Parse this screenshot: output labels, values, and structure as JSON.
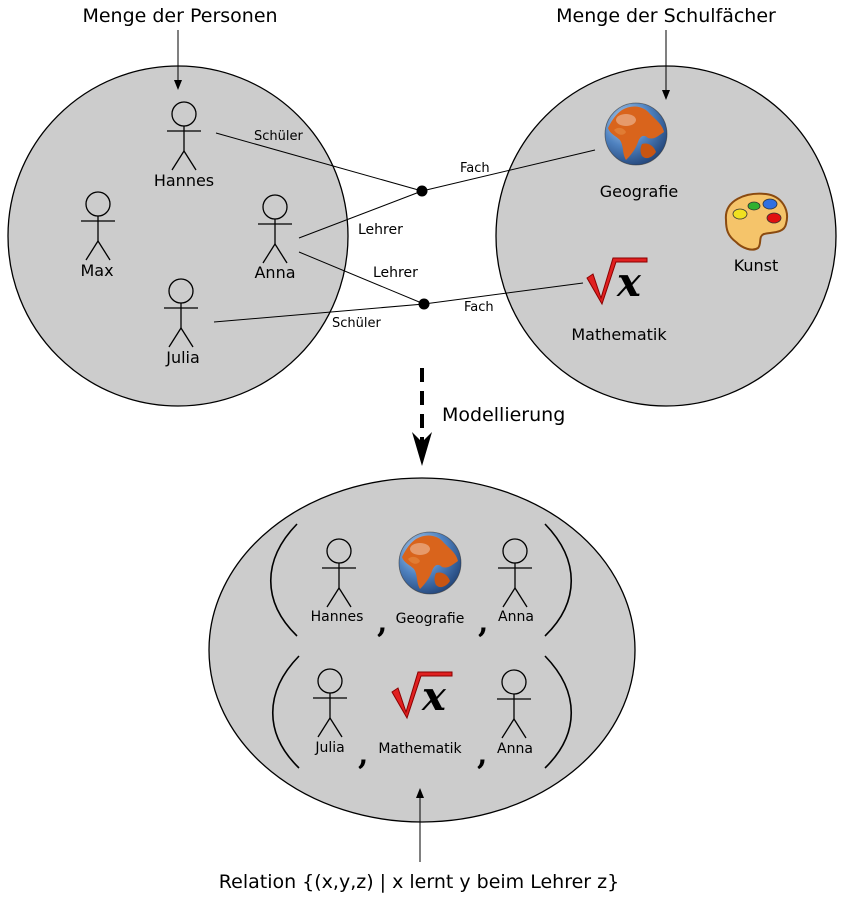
{
  "top_left_caption": "Menge der Personen",
  "top_right_caption": "Menge der Schulfächer",
  "persons": {
    "hannes": "Hannes",
    "max": "Max",
    "anna": "Anna",
    "julia": "Julia"
  },
  "subjects": {
    "geografie": "Geografie",
    "kunst": "Kunst",
    "mathematik": "Mathematik"
  },
  "edges": {
    "schueler_1": "Schüler",
    "lehrer_1": "Lehrer",
    "fach_1": "Fach",
    "lehrer_2": "Lehrer",
    "schueler_2": "Schüler",
    "fach_2": "Fach"
  },
  "arrow_label": "Modellierung",
  "tuples": [
    {
      "person": "Hannes",
      "subject": "Geografie",
      "teacher": "Anna"
    },
    {
      "person": "Julia",
      "subject": "Mathematik",
      "teacher": "Anna"
    }
  ],
  "tuple_separator": ",",
  "bottom_caption": "Relation {(x,y,z) | x lernt y beim Lehrer z}",
  "colors": {
    "set_fill": "#cccccc",
    "outline": "#000000",
    "globe_water": "#3d6fb0",
    "globe_land": "#d9641c",
    "palette": "#f5c46a",
    "math_red": "#e02020"
  },
  "icons": [
    "stick-figure-icon",
    "globe-icon",
    "palette-icon",
    "square-root-x-icon"
  ]
}
